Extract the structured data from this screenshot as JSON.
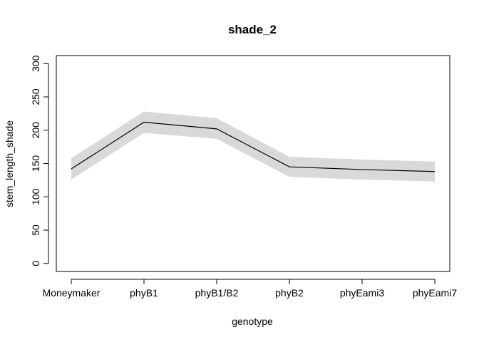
{
  "chart_data": {
    "type": "line",
    "title": "shade_2",
    "xlabel": "genotype",
    "ylabel": "stem_length_shade",
    "categories": [
      "Moneymaker",
      "phyB1",
      "phyB1/B2",
      "phyB2",
      "phyEami3",
      "phyEami7"
    ],
    "series": [
      {
        "values": [
          142,
          212,
          202,
          145,
          141,
          138
        ],
        "lower": [
          126,
          196,
          187,
          130,
          126,
          123
        ],
        "upper": [
          158,
          228,
          218,
          160,
          156,
          153
        ]
      }
    ],
    "yticks": [
      0,
      50,
      100,
      150,
      200,
      250,
      300
    ],
    "ylim": [
      -12,
      312
    ],
    "line_color": "#000000",
    "band_color": "#d9d9d9",
    "grid": false,
    "legend": "none"
  }
}
